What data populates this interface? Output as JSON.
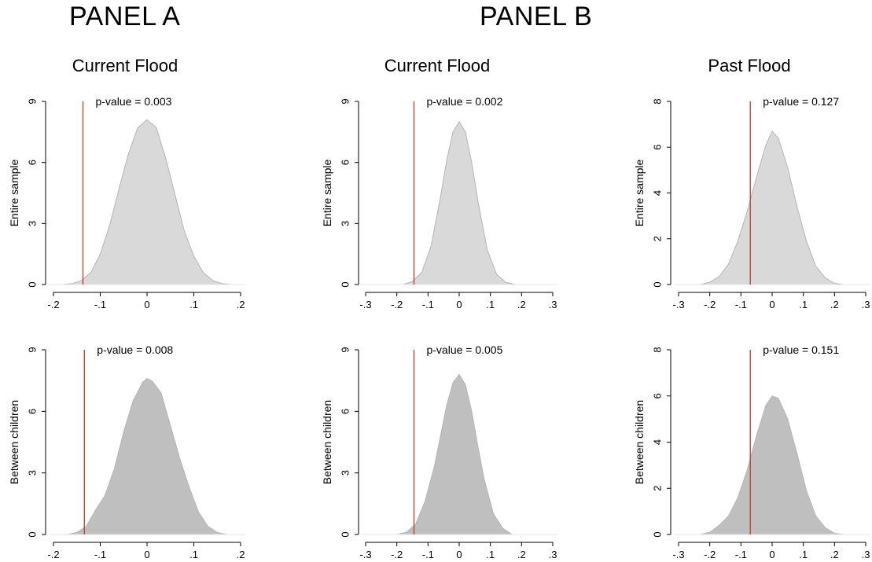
{
  "panels": {
    "a": "PANEL A",
    "b": "PANEL B"
  },
  "column_titles": [
    "Current Flood",
    "Current Flood",
    "Past Flood"
  ],
  "row_labels": [
    "Entire sample",
    "Between children"
  ],
  "colors": {
    "entire_fill": "#d9d9d9",
    "between_fill": "#bfbfbf",
    "edge": "#b5b5b5",
    "vline": "#c0392b"
  },
  "chart_data": [
    {
      "type": "area",
      "id": "a-entire",
      "title": "Current Flood",
      "ylabel": "Entire sample",
      "xlim": [
        -0.2,
        0.2
      ],
      "ylim": [
        0,
        9
      ],
      "xticks": [
        -0.2,
        -0.1,
        0,
        0.1,
        0.2
      ],
      "xtick_labels": [
        "-.2",
        "-.1",
        "0",
        ".1",
        ".2"
      ],
      "yticks": [
        0,
        3,
        6,
        9
      ],
      "ytick_labels": [
        "0",
        "3",
        "6",
        "9"
      ],
      "vline": -0.137,
      "annotation": "p-value = 0.003",
      "x": [
        -0.18,
        -0.16,
        -0.14,
        -0.12,
        -0.1,
        -0.08,
        -0.06,
        -0.04,
        -0.02,
        0.0,
        0.02,
        0.04,
        0.06,
        0.08,
        0.1,
        0.12,
        0.14,
        0.16,
        0.18
      ],
      "y": [
        0.0,
        0.05,
        0.2,
        0.6,
        1.5,
        2.9,
        4.7,
        6.4,
        7.7,
        8.1,
        7.7,
        6.2,
        4.4,
        2.6,
        1.4,
        0.6,
        0.2,
        0.05,
        0.0
      ]
    },
    {
      "type": "area",
      "id": "b1-entire",
      "title": "Current Flood",
      "ylabel": "Entire sample",
      "xlim": [
        -0.3,
        0.3
      ],
      "ylim": [
        0,
        9
      ],
      "xticks": [
        -0.3,
        -0.2,
        -0.1,
        0,
        0.1,
        0.2,
        0.3
      ],
      "xtick_labels": [
        "-.3",
        "-.2",
        "-.1",
        "0",
        ".1",
        ".2",
        ".3"
      ],
      "yticks": [
        0,
        3,
        6,
        9
      ],
      "ytick_labels": [
        "0",
        "3",
        "6",
        "9"
      ],
      "vline": -0.145,
      "annotation": "p-value = 0.002",
      "x": [
        -0.18,
        -0.15,
        -0.12,
        -0.09,
        -0.06,
        -0.04,
        -0.02,
        0.0,
        0.02,
        0.04,
        0.06,
        0.09,
        0.12,
        0.15,
        0.18
      ],
      "y": [
        0.0,
        0.15,
        0.6,
        1.9,
        4.3,
        6.1,
        7.5,
        8.0,
        7.5,
        6.0,
        4.1,
        1.7,
        0.5,
        0.1,
        0.0
      ]
    },
    {
      "type": "area",
      "id": "b2-entire",
      "title": "Past Flood",
      "ylabel": "Entire sample",
      "xlim": [
        -0.3,
        0.3
      ],
      "ylim": [
        0,
        8
      ],
      "xticks": [
        -0.3,
        -0.2,
        -0.1,
        0,
        0.1,
        0.2,
        0.3
      ],
      "xtick_labels": [
        "-.3",
        "-.2",
        "-.1",
        "0",
        ".1",
        ".2",
        ".3"
      ],
      "yticks": [
        0,
        2,
        4,
        6,
        8
      ],
      "ytick_labels": [
        "0",
        "2",
        "4",
        "6",
        "8"
      ],
      "vline": -0.07,
      "annotation": "p-value = 0.127",
      "x": [
        -0.23,
        -0.2,
        -0.17,
        -0.14,
        -0.11,
        -0.08,
        -0.05,
        -0.02,
        0.0,
        0.02,
        0.05,
        0.08,
        0.11,
        0.14,
        0.17,
        0.2,
        0.23
      ],
      "y": [
        0.0,
        0.1,
        0.35,
        0.9,
        1.9,
        3.2,
        4.7,
        6.1,
        6.7,
        6.4,
        5.1,
        3.4,
        1.9,
        0.8,
        0.3,
        0.05,
        0.0
      ]
    },
    {
      "type": "area",
      "id": "a-between",
      "title": "",
      "ylabel": "Between children",
      "xlim": [
        -0.2,
        0.2
      ],
      "ylim": [
        0,
        9
      ],
      "xticks": [
        -0.2,
        -0.1,
        0,
        0.1,
        0.2
      ],
      "xtick_labels": [
        "-.2",
        "-.1",
        "0",
        ".1",
        ".2"
      ],
      "yticks": [
        0,
        3,
        6,
        9
      ],
      "ytick_labels": [
        "0",
        "3",
        "6",
        "9"
      ],
      "vline": -0.134,
      "annotation": "p-value = 0.008",
      "x": [
        -0.17,
        -0.15,
        -0.13,
        -0.11,
        -0.09,
        -0.07,
        -0.05,
        -0.03,
        -0.01,
        0.0,
        0.01,
        0.03,
        0.05,
        0.07,
        0.09,
        0.11,
        0.13,
        0.15,
        0.17
      ],
      "y": [
        0.0,
        0.1,
        0.4,
        1.2,
        1.9,
        3.2,
        5.0,
        6.5,
        7.4,
        7.6,
        7.5,
        6.9,
        5.3,
        3.7,
        2.3,
        1.1,
        0.4,
        0.1,
        0.0
      ]
    },
    {
      "type": "area",
      "id": "b1-between",
      "title": "",
      "ylabel": "Between children",
      "xlim": [
        -0.3,
        0.3
      ],
      "ylim": [
        0,
        9
      ],
      "xticks": [
        -0.3,
        -0.2,
        -0.1,
        0,
        0.1,
        0.2,
        0.3
      ],
      "xtick_labels": [
        "-.3",
        "-.2",
        "-.1",
        "0",
        ".1",
        ".2",
        ".3"
      ],
      "yticks": [
        0,
        3,
        6,
        9
      ],
      "ytick_labels": [
        "0",
        "3",
        "6",
        "9"
      ],
      "vline": -0.145,
      "annotation": "p-value = 0.005",
      "x": [
        -0.2,
        -0.17,
        -0.14,
        -0.11,
        -0.08,
        -0.06,
        -0.04,
        -0.02,
        0.0,
        0.02,
        0.04,
        0.06,
        0.08,
        0.11,
        0.14,
        0.17
      ],
      "y": [
        0.0,
        0.1,
        0.5,
        1.6,
        3.3,
        4.8,
        6.3,
        7.4,
        7.8,
        7.3,
        6.0,
        4.3,
        2.7,
        1.0,
        0.3,
        0.0
      ]
    },
    {
      "type": "area",
      "id": "b2-between",
      "title": "",
      "ylabel": "Between children",
      "xlim": [
        -0.3,
        0.3
      ],
      "ylim": [
        0,
        8
      ],
      "xticks": [
        -0.3,
        -0.2,
        -0.1,
        0,
        0.1,
        0.2,
        0.3
      ],
      "xtick_labels": [
        "-.3",
        "-.2",
        "-.1",
        "0",
        ".1",
        ".2",
        ".3"
      ],
      "yticks": [
        0,
        2,
        4,
        6,
        8
      ],
      "ytick_labels": [
        "0",
        "2",
        "4",
        "6",
        "8"
      ],
      "vline": -0.07,
      "annotation": "p-value = 0.151",
      "x": [
        -0.23,
        -0.2,
        -0.17,
        -0.14,
        -0.11,
        -0.08,
        -0.05,
        -0.02,
        0.0,
        0.02,
        0.05,
        0.08,
        0.11,
        0.14,
        0.17,
        0.2,
        0.23
      ],
      "y": [
        0.0,
        0.1,
        0.4,
        0.8,
        1.6,
        2.8,
        4.3,
        5.6,
        6.0,
        5.9,
        5.0,
        3.5,
        1.9,
        0.8,
        0.3,
        0.05,
        0.0
      ]
    }
  ]
}
